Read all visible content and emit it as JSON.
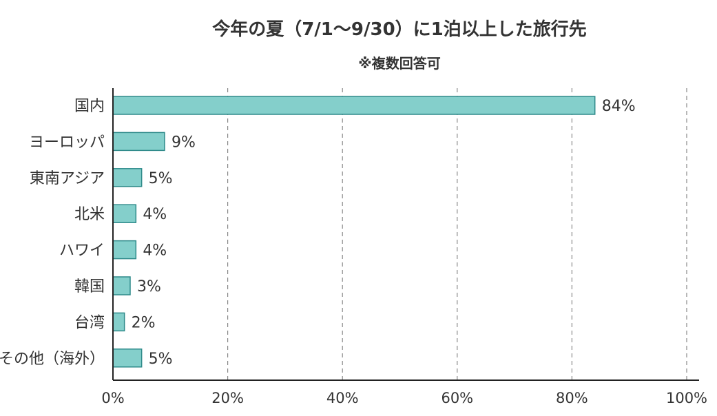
{
  "chart_data": {
    "type": "bar",
    "orientation": "horizontal",
    "title": "今年の夏（7/1〜9/30）に1泊以上した旅行先",
    "subtitle": "※複数回答可",
    "categories": [
      "国内",
      "ヨーロッパ",
      "東南アジア",
      "北米",
      "ハワイ",
      "韓国",
      "台湾",
      "その他（海外）"
    ],
    "values": [
      84,
      9,
      5,
      4,
      4,
      3,
      2,
      5
    ],
    "value_labels": [
      "84%",
      "9%",
      "5%",
      "4%",
      "4%",
      "3%",
      "2%",
      "5%"
    ],
    "xlim": [
      0,
      100
    ],
    "xticks": [
      0,
      20,
      40,
      60,
      80,
      100
    ],
    "xtick_labels": [
      "0%",
      "20%",
      "40%",
      "60%",
      "80%",
      "100%"
    ],
    "grid": "vertical dashed",
    "colors": {
      "bar_fill": "#84cfcb",
      "bar_stroke": "#2e8a8a",
      "grid": "#888888",
      "axis": "#222222",
      "text": "#333333"
    }
  }
}
